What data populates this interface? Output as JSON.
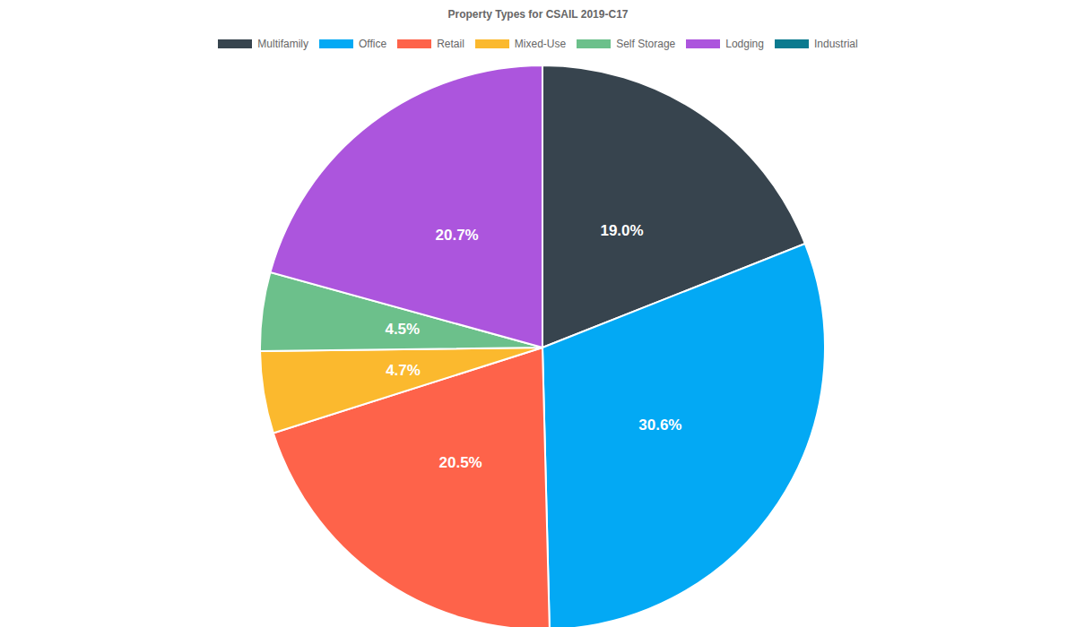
{
  "chart_data": {
    "type": "pie",
    "title": "Property Types for CSAIL 2019-C17",
    "categories": [
      "Multifamily",
      "Office",
      "Retail",
      "Mixed-Use",
      "Self Storage",
      "Lodging",
      "Industrial"
    ],
    "values": [
      19.0,
      30.6,
      20.5,
      4.7,
      4.5,
      20.7,
      0
    ],
    "value_labels": [
      "19.0%",
      "30.6%",
      "20.5%",
      "4.7%",
      "4.5%",
      "20.7%",
      null
    ],
    "colors": [
      "#37444e",
      "#03a9f4",
      "#fe634a",
      "#fbb92e",
      "#6cc08b",
      "#ac55dd",
      "#0a7a8f"
    ],
    "data_labels": true,
    "legend": "top"
  }
}
